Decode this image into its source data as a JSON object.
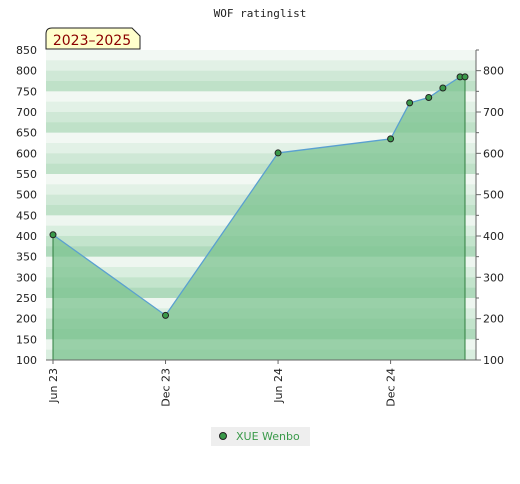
{
  "chart_data": {
    "type": "area",
    "title": "WOF ratinglist",
    "period_badge": "2023–2025",
    "xlabel": "",
    "ylabel": "",
    "x_ticks": [
      "Jun 23",
      "Dec 23",
      "Jun 24",
      "Dec 24"
    ],
    "x_tick_dates": [
      "2023-06-01",
      "2023-12-01",
      "2024-06-01",
      "2024-12-01"
    ],
    "x_range": [
      "2023-06-01",
      "2025-04-01"
    ],
    "y_left_range": [
      100,
      850
    ],
    "y_left_ticks": [
      100,
      150,
      200,
      250,
      300,
      350,
      400,
      450,
      500,
      550,
      600,
      650,
      700,
      750,
      800,
      850
    ],
    "y_right_ticks": [
      100,
      200,
      300,
      400,
      500,
      600,
      700,
      800
    ],
    "grid": "horizontal bands",
    "legend_position": "bottom-center",
    "series": [
      {
        "name": "XUE Wenbo",
        "color": "#3a9a4a",
        "line_color": "#5aa0d0",
        "fill_color": "#7cc390",
        "points": [
          {
            "x": "2023-06-01",
            "y": 403
          },
          {
            "x": "2023-12-01",
            "y": 208
          },
          {
            "x": "2024-06-01",
            "y": 601
          },
          {
            "x": "2024-12-01",
            "y": 635
          },
          {
            "x": "2025-01-01",
            "y": 722
          },
          {
            "x": "2025-02-01",
            "y": 735
          },
          {
            "x": "2025-02-24",
            "y": 758
          },
          {
            "x": "2025-03-24",
            "y": 785
          },
          {
            "x": "2025-04-01",
            "y": 785
          }
        ]
      }
    ]
  }
}
